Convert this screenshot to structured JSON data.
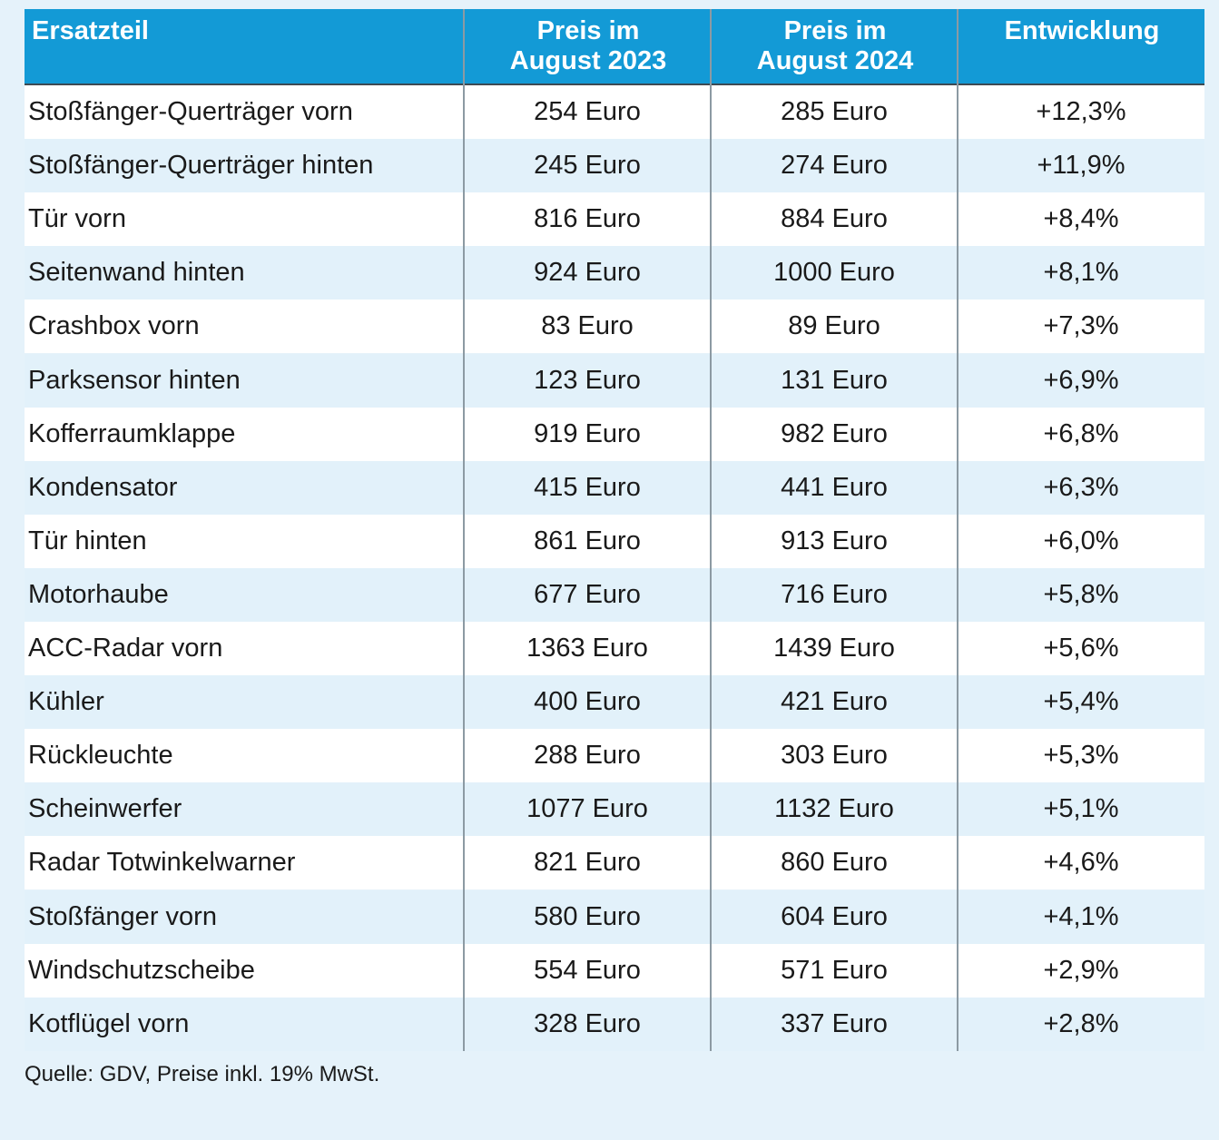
{
  "table": {
    "header": [
      "Ersatzteil",
      "Preis im August 2023",
      "Preis im August 2024",
      "Entwicklung"
    ],
    "rows": [
      [
        "Stoßfänger-Querträger vorn",
        "254 Euro",
        "285 Euro",
        "+12,3%"
      ],
      [
        "Stoßfänger-Querträger hinten",
        "245 Euro",
        "274 Euro",
        "+11,9%"
      ],
      [
        "Tür vorn",
        "816 Euro",
        "884 Euro",
        "+8,4%"
      ],
      [
        "Seitenwand hinten",
        "924 Euro",
        "1000 Euro",
        "+8,1%"
      ],
      [
        "Crashbox vorn",
        "83 Euro",
        "89 Euro",
        "+7,3%"
      ],
      [
        "Parksensor hinten",
        "123 Euro",
        "131 Euro",
        "+6,9%"
      ],
      [
        "Kofferraumklappe",
        "919 Euro",
        "982 Euro",
        "+6,8%"
      ],
      [
        "Kondensator",
        "415 Euro",
        "441 Euro",
        "+6,3%"
      ],
      [
        "Tür hinten",
        "861 Euro",
        "913 Euro",
        "+6,0%"
      ],
      [
        "Motorhaube",
        "677 Euro",
        "716 Euro",
        "+5,8%"
      ],
      [
        "ACC-Radar vorn",
        "1363 Euro",
        "1439 Euro",
        "+5,6%"
      ],
      [
        "Kühler",
        "400 Euro",
        "421 Euro",
        "+5,4%"
      ],
      [
        "Rückleuchte",
        "288 Euro",
        "303 Euro",
        "+5,3%"
      ],
      [
        "Scheinwerfer",
        "1077 Euro",
        "1132 Euro",
        "+5,1%"
      ],
      [
        "Radar Totwinkelwarner",
        "821 Euro",
        "860 Euro",
        "+4,6%"
      ],
      [
        "Stoßfänger vorn",
        "580 Euro",
        "604 Euro",
        "+4,1%"
      ],
      [
        "Windschutzscheibe",
        "554 Euro",
        "571 Euro",
        "+2,9%"
      ],
      [
        "Kotflügel vorn",
        "328 Euro",
        "337 Euro",
        "+2,8%"
      ]
    ]
  },
  "source": "Quelle: GDV, Preise inkl. 19% MwSt."
}
